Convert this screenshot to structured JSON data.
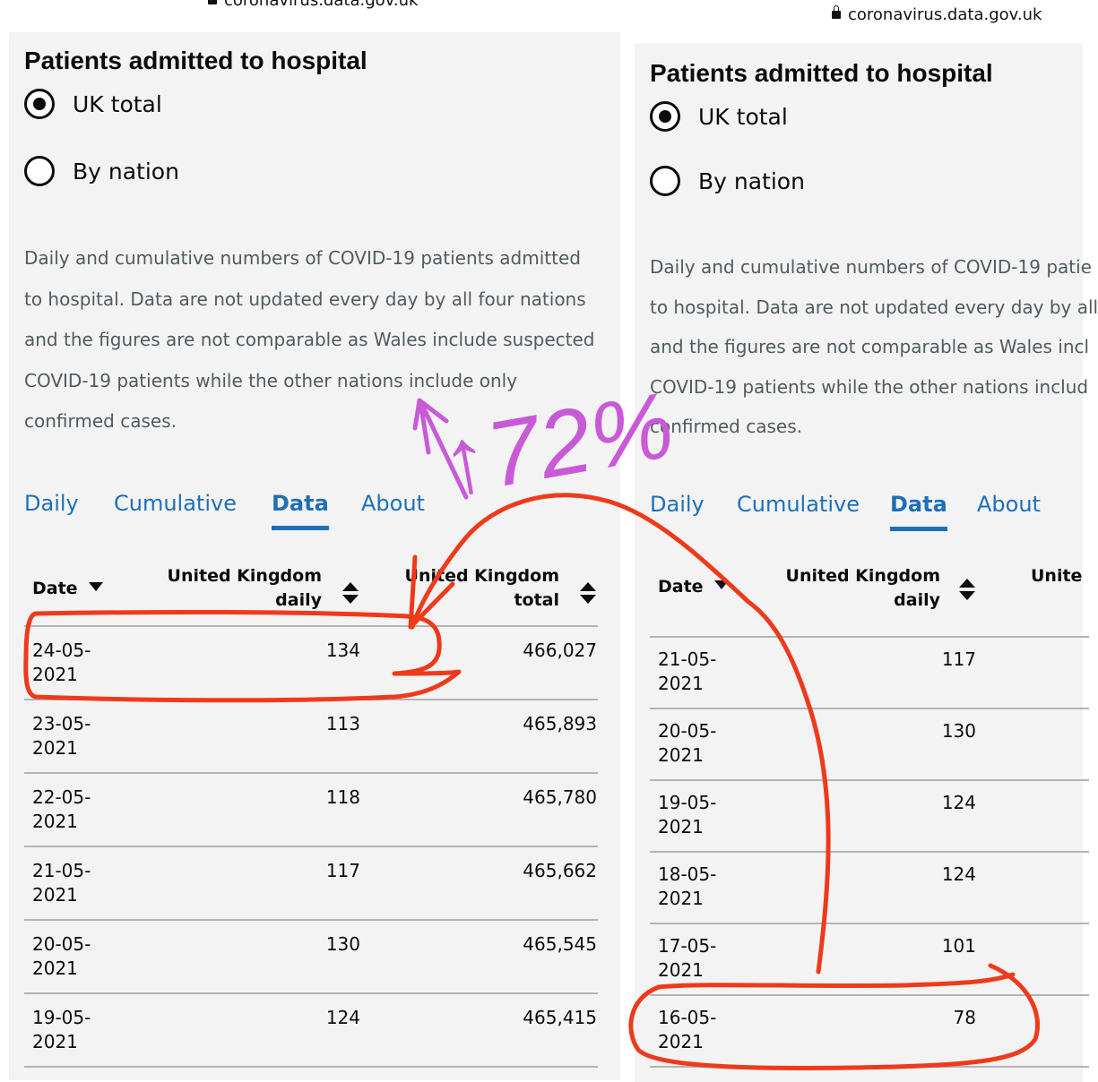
{
  "left": {
    "url": "coronavirus.data.gov.uk",
    "title": "Patients admitted to hospital",
    "radios": [
      {
        "label": "UK total",
        "checked": true
      },
      {
        "label": "By nation",
        "checked": false
      }
    ],
    "description": [
      "Daily and cumulative numbers of COVID-19 patients admitted",
      "to hospital. Data are not updated every day by all four nations",
      "and the figures are not comparable as Wales include suspected",
      "COVID-19 patients while the other nations include only",
      "confirmed cases."
    ],
    "tabs": [
      "Daily",
      "Cumulative",
      "Data",
      "About"
    ],
    "active_tab": "Data",
    "columns": {
      "date": "Date",
      "daily": [
        "United Kingdom",
        "daily"
      ],
      "total": [
        "United Kingdom",
        "total"
      ]
    },
    "rows": [
      {
        "date": [
          "24-05-",
          "2021"
        ],
        "daily": "134",
        "total": "466,027"
      },
      {
        "date": [
          "23-05-",
          "2021"
        ],
        "daily": "113",
        "total": "465,893"
      },
      {
        "date": [
          "22-05-",
          "2021"
        ],
        "daily": "118",
        "total": "465,780"
      },
      {
        "date": [
          "21-05-",
          "2021"
        ],
        "daily": "117",
        "total": "465,662"
      },
      {
        "date": [
          "20-05-",
          "2021"
        ],
        "daily": "130",
        "total": "465,545"
      },
      {
        "date": [
          "19-05-",
          "2021"
        ],
        "daily": "124",
        "total": "465,415"
      }
    ]
  },
  "right": {
    "url": "coronavirus.data.gov.uk",
    "title": "Patients admitted to hospital",
    "radios": [
      {
        "label": "UK total",
        "checked": true
      },
      {
        "label": "By nation",
        "checked": false
      }
    ],
    "description": [
      "Daily and cumulative numbers of COVID-19 patie",
      "to hospital. Data are not updated every day by all",
      "and the figures are not comparable as Wales incl",
      "COVID-19 patients while the other nations includ",
      "confirmed cases."
    ],
    "tabs": [
      "Daily",
      "Cumulative",
      "Data",
      "About"
    ],
    "active_tab": "Data",
    "columns": {
      "date": "Date",
      "daily": [
        "United Kingdom",
        "daily"
      ],
      "total_partial": "Unite"
    },
    "rows": [
      {
        "date": [
          "21-05-",
          "2021"
        ],
        "daily": "117"
      },
      {
        "date": [
          "20-05-",
          "2021"
        ],
        "daily": "130"
      },
      {
        "date": [
          "19-05-",
          "2021"
        ],
        "daily": "124"
      },
      {
        "date": [
          "18-05-",
          "2021"
        ],
        "daily": "124"
      },
      {
        "date": [
          "17-05-",
          "2021"
        ],
        "daily": "101"
      },
      {
        "date": [
          "16-05-",
          "2021"
        ],
        "daily": "78"
      }
    ]
  },
  "annotation": {
    "text": "↑72%",
    "text_color": "#c85ad8",
    "circle_color": "#ee3a1c"
  }
}
